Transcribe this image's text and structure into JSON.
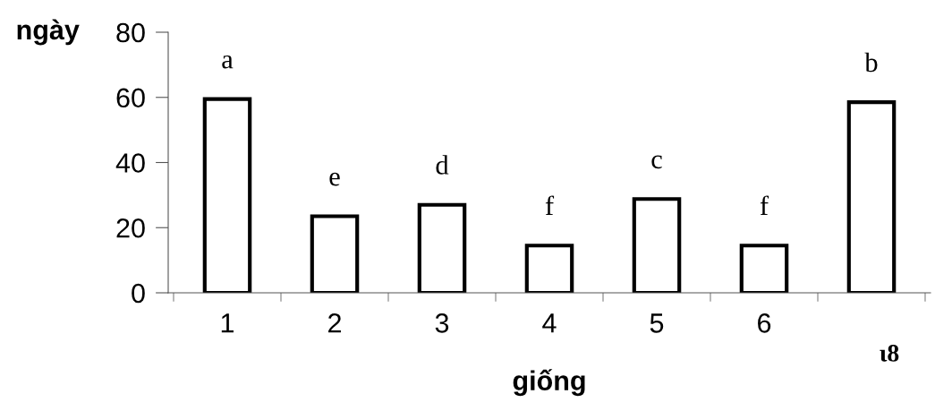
{
  "chart_data": {
    "type": "bar",
    "xlabel": "giống",
    "ylabel": "ngày",
    "categories": [
      "1",
      "2",
      "3",
      "4",
      "5",
      "6",
      "ι8"
    ],
    "values": [
      59.5,
      23.5,
      27,
      14.5,
      28.8,
      14.5,
      58.5
    ],
    "color": "#ffffff",
    "ylim": [
      0,
      80
    ],
    "yticks": [
      0,
      20,
      40,
      60,
      80
    ],
    "grid": false,
    "legend": false,
    "annotations": [
      "a",
      "e",
      "d",
      "f",
      "c",
      "f",
      "b"
    ]
  }
}
